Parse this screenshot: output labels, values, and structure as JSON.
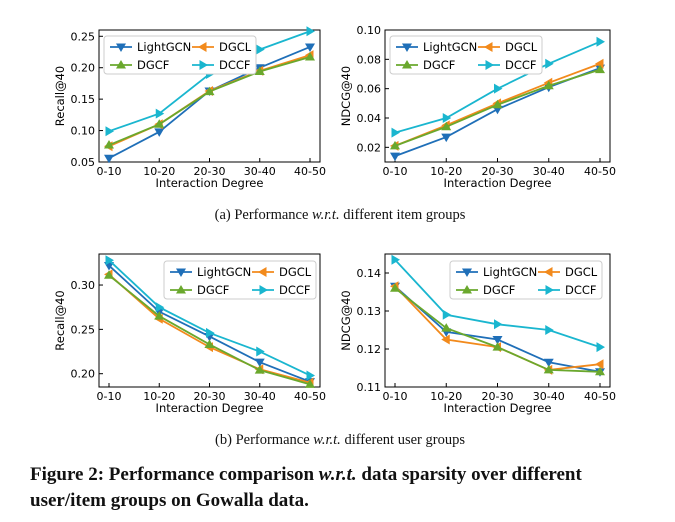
{
  "chart_data": [
    {
      "type": "line",
      "panel": "a-left",
      "ylabel": "Recall@40",
      "xlabel": "Interaction Degree",
      "categories": [
        "0-10",
        "10-20",
        "20-30",
        "30-40",
        "40-50"
      ],
      "ylim": [
        0.05,
        0.26
      ],
      "yticks": [
        "0.05",
        "0.10",
        "0.15",
        "0.20",
        "0.25"
      ],
      "legend": "top-left",
      "series": [
        {
          "name": "LightGCN",
          "values": [
            0.056,
            0.098,
            0.163,
            0.2,
            0.233
          ]
        },
        {
          "name": "DGCL",
          "values": [
            0.075,
            0.11,
            0.163,
            0.195,
            0.22
          ]
        },
        {
          "name": "DGCF",
          "values": [
            0.077,
            0.11,
            0.162,
            0.194,
            0.217
          ]
        },
        {
          "name": "DCCF",
          "values": [
            0.099,
            0.127,
            0.19,
            0.229,
            0.258
          ]
        }
      ]
    },
    {
      "type": "line",
      "panel": "a-right",
      "ylabel": "NDCG@40",
      "xlabel": "Interaction Degree",
      "categories": [
        "0-10",
        "10-20",
        "20-30",
        "30-40",
        "40-50"
      ],
      "ylim": [
        0.01,
        0.1
      ],
      "yticks": [
        "0.02",
        "0.04",
        "0.06",
        "0.08",
        "0.10"
      ],
      "legend": "top-left",
      "series": [
        {
          "name": "LightGCN",
          "values": [
            0.014,
            0.027,
            0.046,
            0.061,
            0.074
          ]
        },
        {
          "name": "DGCL",
          "values": [
            0.021,
            0.035,
            0.05,
            0.064,
            0.077
          ]
        },
        {
          "name": "DGCF",
          "values": [
            0.021,
            0.034,
            0.049,
            0.062,
            0.073
          ]
        },
        {
          "name": "DCCF",
          "values": [
            0.03,
            0.04,
            0.06,
            0.077,
            0.092
          ]
        }
      ]
    },
    {
      "type": "line",
      "panel": "b-left",
      "ylabel": "Recall@40",
      "xlabel": "Interaction Degree",
      "categories": [
        "0-10",
        "10-20",
        "20-30",
        "30-40",
        "40-50"
      ],
      "ylim": [
        0.185,
        0.335
      ],
      "yticks": [
        "0.20",
        "0.25",
        "0.30"
      ],
      "legend": "top-right",
      "series": [
        {
          "name": "LightGCN",
          "values": [
            0.322,
            0.27,
            0.242,
            0.213,
            0.191
          ]
        },
        {
          "name": "DGCL",
          "values": [
            0.312,
            0.262,
            0.23,
            0.205,
            0.19
          ]
        },
        {
          "name": "DGCF",
          "values": [
            0.311,
            0.265,
            0.233,
            0.204,
            0.188
          ]
        },
        {
          "name": "DCCF",
          "values": [
            0.328,
            0.275,
            0.246,
            0.225,
            0.198
          ]
        }
      ]
    },
    {
      "type": "line",
      "panel": "b-right",
      "ylabel": "NDCG@40",
      "xlabel": "Interaction Degree",
      "categories": [
        "0-10",
        "10-20",
        "20-30",
        "30-40",
        "40-50"
      ],
      "ylim": [
        0.11,
        0.145
      ],
      "yticks": [
        "0.11",
        "0.12",
        "0.13",
        "0.14"
      ],
      "legend": "top-right",
      "series": [
        {
          "name": "LightGCN",
          "values": [
            0.1365,
            0.1245,
            0.1225,
            0.1165,
            0.114
          ]
        },
        {
          "name": "DGCL",
          "values": [
            0.1365,
            0.1225,
            0.1205,
            0.1145,
            0.116
          ]
        },
        {
          "name": "DGCF",
          "values": [
            0.136,
            0.1255,
            0.1205,
            0.1145,
            0.114
          ]
        },
        {
          "name": "DCCF",
          "values": [
            0.1435,
            0.129,
            0.1265,
            0.125,
            0.1205
          ]
        }
      ]
    }
  ],
  "series_colors": {
    "LightGCN": "#1f6fb8",
    "DGCL": "#f28a1c",
    "DGCF": "#6aa82d",
    "DCCF": "#1ab6cf"
  },
  "series_markers": {
    "LightGCN": "triangle-down",
    "DGCL": "triangle-left",
    "DGCF": "triangle-up",
    "DCCF": "triangle-right"
  },
  "captions": {
    "a_prefix": "(a)  Performance ",
    "a_wrt": "w.r.t.",
    "a_suffix": " different item groups",
    "b_prefix": "(b)  Performance ",
    "b_wrt": "w.r.t.",
    "b_suffix": " different user groups"
  },
  "figure_caption": {
    "prefix": "Figure 2: Performance comparison ",
    "wrt": "w.r.t.",
    "suffix": " data sparsity over different user/item groups on Gowalla data."
  }
}
